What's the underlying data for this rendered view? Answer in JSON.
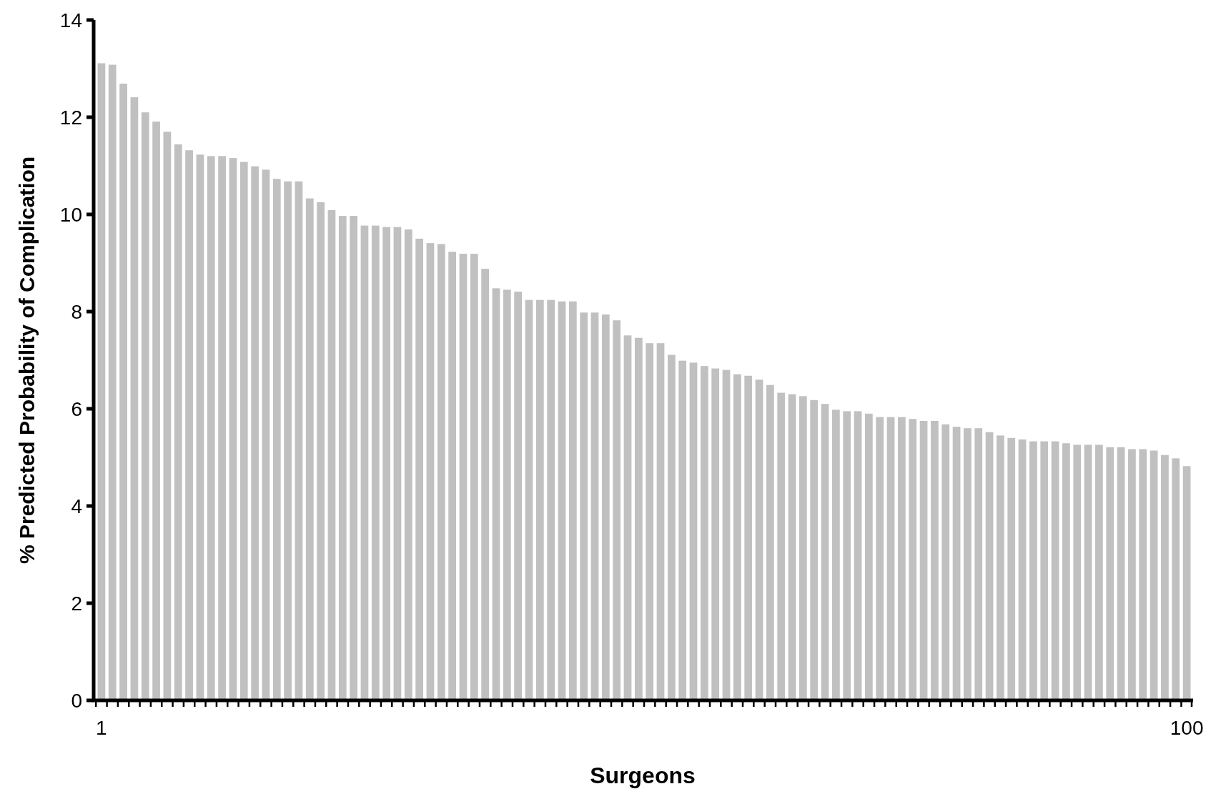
{
  "chart_data": {
    "type": "bar",
    "xlabel": "Surgeons",
    "ylabel": "% Predicted Probability of Complication",
    "categories": [
      "1",
      null,
      null,
      null,
      null,
      null,
      null,
      null,
      null,
      null,
      null,
      null,
      null,
      null,
      null,
      null,
      null,
      null,
      null,
      null,
      null,
      null,
      null,
      null,
      null,
      null,
      null,
      null,
      null,
      null,
      null,
      null,
      null,
      null,
      null,
      null,
      null,
      null,
      null,
      null,
      null,
      null,
      null,
      null,
      null,
      null,
      null,
      null,
      null,
      null,
      null,
      null,
      null,
      null,
      null,
      null,
      null,
      null,
      null,
      null,
      null,
      null,
      null,
      null,
      null,
      null,
      null,
      null,
      null,
      null,
      null,
      null,
      null,
      null,
      null,
      null,
      null,
      null,
      null,
      null,
      null,
      null,
      null,
      null,
      null,
      null,
      null,
      null,
      null,
      null,
      null,
      null,
      null,
      null,
      null,
      null,
      null,
      null,
      null,
      "100"
    ],
    "values": [
      13.11,
      13.08,
      12.69,
      12.41,
      12.1,
      11.91,
      11.7,
      11.44,
      11.32,
      11.23,
      11.2,
      11.2,
      11.16,
      11.08,
      10.99,
      10.92,
      10.73,
      10.68,
      10.68,
      10.33,
      10.25,
      10.09,
      9.97,
      9.97,
      9.77,
      9.77,
      9.74,
      9.74,
      9.69,
      9.5,
      9.41,
      9.39,
      9.23,
      9.19,
      9.19,
      8.88,
      8.48,
      8.45,
      8.41,
      8.24,
      8.24,
      8.24,
      8.21,
      8.21,
      7.98,
      7.98,
      7.94,
      7.82,
      7.51,
      7.46,
      7.35,
      7.35,
      7.11,
      6.99,
      6.95,
      6.88,
      6.83,
      6.8,
      6.71,
      6.68,
      6.6,
      6.49,
      6.33,
      6.3,
      6.26,
      6.18,
      6.1,
      5.98,
      5.95,
      5.95,
      5.9,
      5.83,
      5.83,
      5.83,
      5.79,
      5.75,
      5.75,
      5.68,
      5.63,
      5.6,
      5.6,
      5.52,
      5.45,
      5.4,
      5.37,
      5.33,
      5.33,
      5.33,
      5.29,
      5.26,
      5.26,
      5.26,
      5.21,
      5.21,
      5.17,
      5.17,
      5.14,
      5.05,
      4.98,
      4.82
    ],
    "color": "#c0c0c0",
    "ylim": [
      0,
      14
    ],
    "yticks": [
      0,
      2,
      4,
      6,
      8,
      10,
      12,
      14
    ],
    "grid": false
  }
}
